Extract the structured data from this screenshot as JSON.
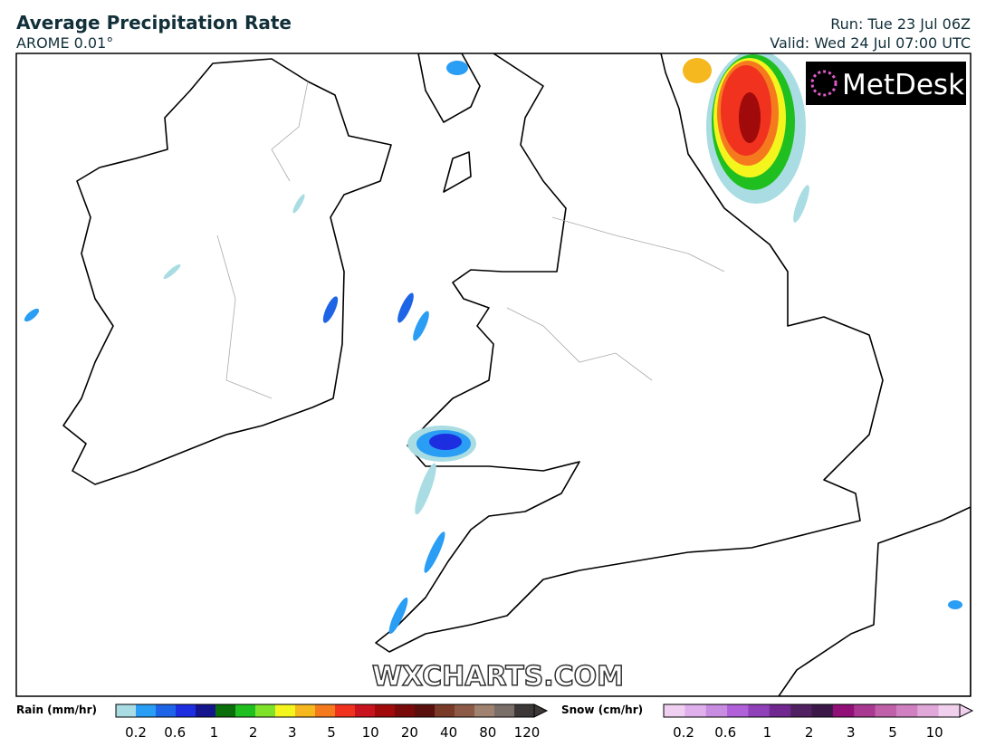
{
  "header": {
    "title": "Average Precipitation Rate",
    "model": "AROME 0.01°",
    "run": "Run: Tue 23 Jul 06Z",
    "valid": "Valid: Wed 24 Jul 07:00 UTC"
  },
  "logo": "MetDesk",
  "watermark": "WXCHARTS.COM",
  "legend": {
    "rain": {
      "label": "Rain (mm/hr)",
      "ticks": [
        "0.2",
        "0.6",
        "1",
        "2",
        "3",
        "5",
        "10",
        "20",
        "40",
        "80",
        "120"
      ],
      "colors": [
        "#a9dde3",
        "#2a9df4",
        "#1e64e6",
        "#1c2ee0",
        "#14148c",
        "#0a6e0a",
        "#1fbf1f",
        "#7fe22a",
        "#f5f51e",
        "#f5b81e",
        "#f57a1e",
        "#f0321e",
        "#c8141e",
        "#a00a0a",
        "#780a0a",
        "#5a0f0f",
        "#7a3a28",
        "#8c5a46",
        "#a08270",
        "#7a6e68",
        "#3c3838"
      ]
    },
    "snow": {
      "label": "Snow (cm/hr)",
      "ticks": [
        "0.2",
        "0.6",
        "1",
        "2",
        "3",
        "5",
        "10"
      ],
      "colors": [
        "#f0d0f0",
        "#e0b0ec",
        "#c88ce0",
        "#b060d8",
        "#9040b8",
        "#702890",
        "#502060",
        "#3c1848",
        "#901078",
        "#a83890",
        "#c060a8",
        "#d080c0",
        "#e0a8d8",
        "#f0d0ec"
      ]
    }
  }
}
